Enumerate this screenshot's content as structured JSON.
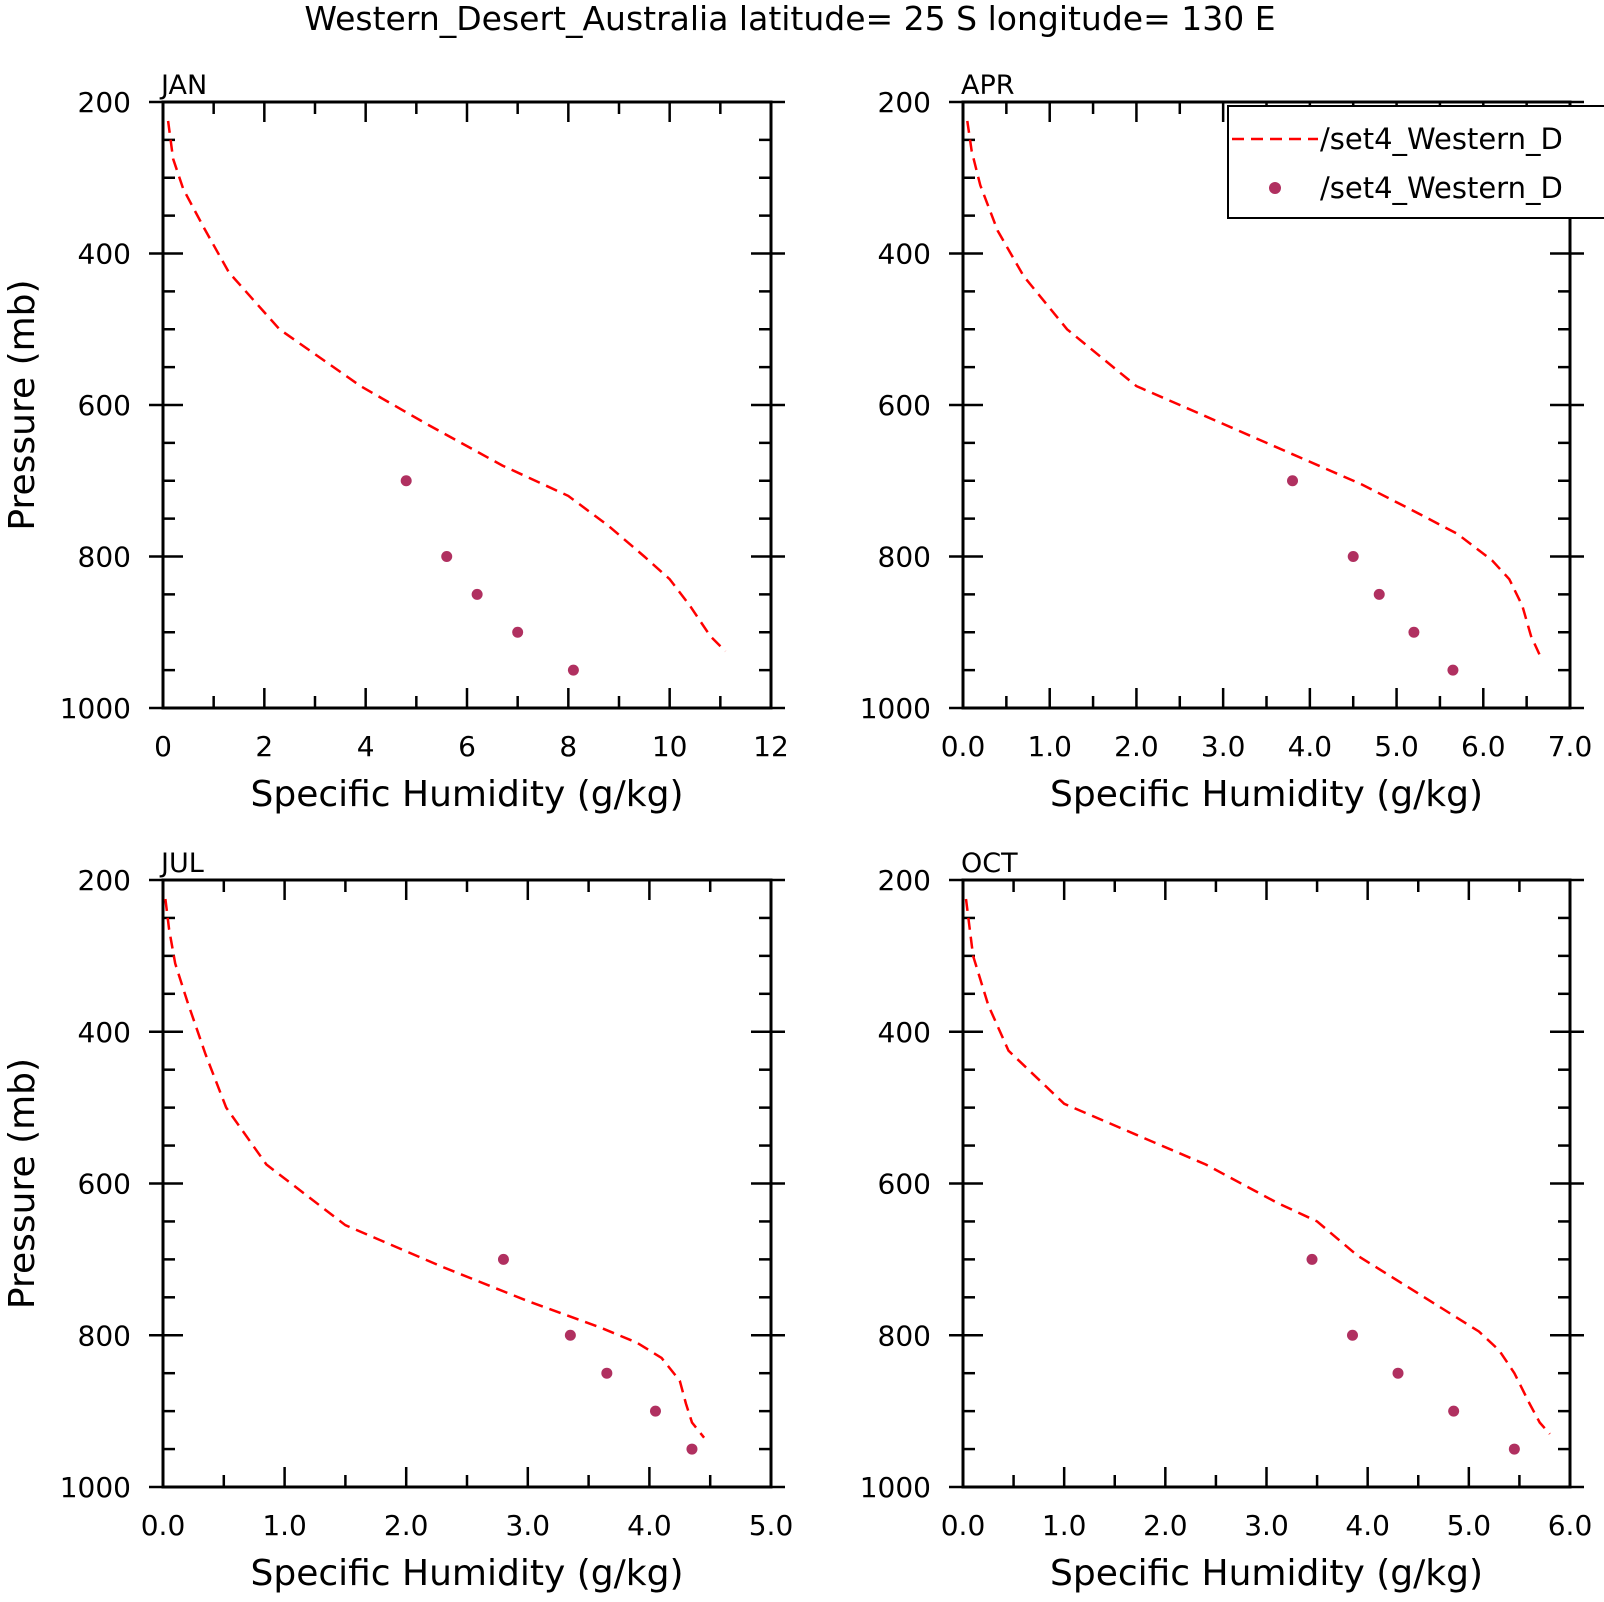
{
  "chart_data": {
    "title": "Western_Desert_Australia  latitude= 25 S longitude= 130 E",
    "legend": {
      "placement": "top-right",
      "entries": [
        {
          "label": "/set4_Western_D",
          "style": "dashed-line",
          "color": "#ff0000"
        },
        {
          "label": "/set4_Western_D",
          "style": "marker",
          "color": "#b03060"
        }
      ]
    },
    "panels": [
      {
        "type": "line",
        "name": "JAN",
        "xlabel": "Specific Humidity (g/kg)",
        "ylabel": "Pressure (mb)",
        "xlim": [
          0,
          12
        ],
        "ylim": [
          1000,
          200
        ],
        "xticks": [
          0,
          2,
          4,
          6,
          8,
          10,
          12
        ],
        "xtick_labels": [
          "0",
          "2",
          "4",
          "6",
          "8",
          "10",
          "12"
        ],
        "xminor": 1,
        "yticks": [
          200,
          400,
          600,
          800,
          1000
        ],
        "ytick_labels": [
          "200",
          "400",
          "600",
          "800",
          "1000"
        ],
        "show_ylabel": true,
        "show_legend": false,
        "series": [
          {
            "style": "dashed",
            "color": "#ff0000",
            "x": [
              0.1,
              0.2,
              0.4,
              0.8,
              1.3,
              2.3,
              3.9,
              5.2,
              6.7,
              8.0,
              8.8,
              9.5,
              10.0,
              10.4,
              10.8,
              11.1
            ],
            "y": [
              225,
              275,
              315,
              365,
              425,
              500,
              575,
              625,
              680,
              720,
              760,
              800,
              830,
              865,
              905,
              925
            ]
          },
          {
            "style": "markers",
            "color": "#b03060",
            "x": [
              4.8,
              5.6,
              6.2,
              7.0,
              8.1
            ],
            "y": [
              700,
              800,
              850,
              900,
              950
            ]
          }
        ]
      },
      {
        "type": "line",
        "name": "APR",
        "xlabel": "Specific Humidity (g/kg)",
        "ylabel": "Pressure (mb)",
        "xlim": [
          0,
          7
        ],
        "ylim": [
          1000,
          200
        ],
        "xticks": [
          0,
          1,
          2,
          3,
          4,
          5,
          6,
          7
        ],
        "xtick_labels": [
          "0.0",
          "1.0",
          "2.0",
          "3.0",
          "4.0",
          "5.0",
          "6.0",
          "7.0"
        ],
        "xminor": 0.5,
        "yticks": [
          200,
          400,
          600,
          800,
          1000
        ],
        "ytick_labels": [
          "200",
          "400",
          "600",
          "800",
          "1000"
        ],
        "show_ylabel": false,
        "show_legend": true,
        "series": [
          {
            "style": "dashed",
            "color": "#ff0000",
            "x": [
              0.05,
              0.1,
              0.2,
              0.4,
              0.7,
              1.2,
              2.0,
              3.0,
              3.9,
              4.6,
              5.2,
              5.7,
              6.1,
              6.3,
              6.45,
              6.55,
              6.65
            ],
            "y": [
              225,
              265,
              310,
              370,
              430,
              500,
              575,
              625,
              670,
              705,
              740,
              770,
              805,
              830,
              865,
              905,
              930
            ]
          },
          {
            "style": "markers",
            "color": "#b03060",
            "x": [
              3.8,
              4.5,
              4.8,
              5.2,
              5.65
            ],
            "y": [
              700,
              800,
              850,
              900,
              950
            ]
          }
        ]
      },
      {
        "type": "line",
        "name": "JUL",
        "xlabel": "Specific Humidity (g/kg)",
        "ylabel": "Pressure (mb)",
        "xlim": [
          0,
          5
        ],
        "ylim": [
          1000,
          200
        ],
        "xticks": [
          0,
          1,
          2,
          3,
          4,
          5
        ],
        "xtick_labels": [
          "0.0",
          "1.0",
          "2.0",
          "3.0",
          "4.0",
          "5.0"
        ],
        "xminor": 0.5,
        "yticks": [
          200,
          400,
          600,
          800,
          1000
        ],
        "ytick_labels": [
          "200",
          "400",
          "600",
          "800",
          "1000"
        ],
        "show_ylabel": true,
        "show_legend": false,
        "series": [
          {
            "style": "dashed",
            "color": "#ff0000",
            "x": [
              0.02,
              0.05,
              0.1,
              0.2,
              0.35,
              0.52,
              0.85,
              1.5,
              2.3,
              3.0,
              3.6,
              3.9,
              4.1,
              4.25,
              4.3,
              4.35,
              4.45
            ],
            "y": [
              225,
              265,
              310,
              360,
              430,
              500,
              575,
              655,
              710,
              755,
              790,
              810,
              830,
              860,
              890,
              915,
              935
            ]
          },
          {
            "style": "markers",
            "color": "#b03060",
            "x": [
              2.8,
              3.35,
              3.65,
              4.05,
              4.35
            ],
            "y": [
              700,
              800,
              850,
              900,
              950
            ]
          }
        ]
      },
      {
        "type": "line",
        "name": "OCT",
        "xlabel": "Specific Humidity (g/kg)",
        "ylabel": "Pressure (mb)",
        "xlim": [
          0,
          6
        ],
        "ylim": [
          1000,
          200
        ],
        "xticks": [
          0,
          1,
          2,
          3,
          4,
          5,
          6
        ],
        "xtick_labels": [
          "0.0",
          "1.0",
          "2.0",
          "3.0",
          "4.0",
          "5.0",
          "6.0"
        ],
        "xminor": 0.5,
        "yticks": [
          200,
          400,
          600,
          800,
          1000
        ],
        "ytick_labels": [
          "200",
          "400",
          "600",
          "800",
          "1000"
        ],
        "show_ylabel": false,
        "show_legend": false,
        "series": [
          {
            "style": "dashed",
            "color": "#ff0000",
            "x": [
              0.03,
              0.1,
              0.25,
              0.45,
              1.0,
              1.7,
              2.4,
              3.1,
              3.5,
              3.9,
              4.5,
              5.1,
              5.3,
              5.45,
              5.6,
              5.7,
              5.8
            ],
            "y": [
              225,
              300,
              365,
              425,
              495,
              535,
              575,
              625,
              650,
              695,
              745,
              795,
              820,
              850,
              890,
              915,
              930
            ]
          },
          {
            "style": "markers",
            "color": "#b03060",
            "x": [
              3.45,
              3.85,
              4.3,
              4.85,
              5.45
            ],
            "y": [
              700,
              800,
              850,
              900,
              950
            ]
          }
        ]
      }
    ]
  }
}
